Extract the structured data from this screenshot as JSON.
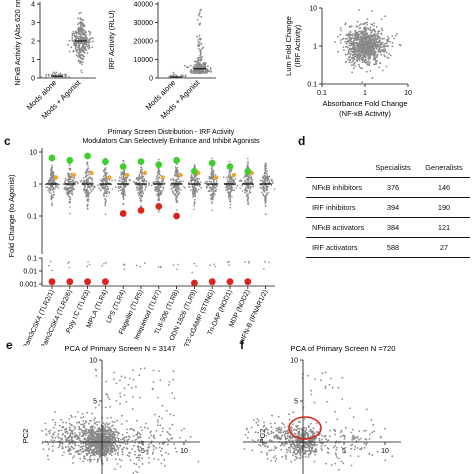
{
  "panels": {
    "c": "c",
    "d": "d",
    "e": "e",
    "f": "f"
  },
  "panel_a": {
    "ylabel": "NFκB Activity (Abs 620 nm)",
    "yticks": [
      "0",
      "1",
      "2",
      "3",
      "4"
    ],
    "categories": [
      "Mods alone",
      "Mods + Agonist"
    ]
  },
  "panel_b": {
    "ylabel": "IRF Activity (RLU)",
    "yticks": [
      "0",
      "10000",
      "20000",
      "30000",
      "40000"
    ],
    "categories": [
      "Mods alone",
      "Mods + Agonist"
    ]
  },
  "panel_scatter": {
    "xlabel": "Absorbance Fold Change",
    "xlabel2": "(NF-κB Activity)",
    "ylabel": "Lum Fold Change",
    "ylabel2": "(IRF Activity)",
    "xticks": [
      "0.1",
      "1",
      "10"
    ],
    "yticks": [
      "10",
      "1",
      "0.1"
    ]
  },
  "panel_c": {
    "title1": "Primary Screen Distribution - IRF Activity",
    "title2": "Modulators Can Selectively Enhance and Inhibit Agonists",
    "ylabel": "Fold Change (to Agonist)",
    "yticks_upper": [
      "10",
      "1",
      "0.1"
    ],
    "yticks_lower": [
      "0.1",
      "0.01",
      "0.001"
    ],
    "categories": [
      "Pam3CSK4 (TLR2/1)",
      "Pam2CSK4 (TLR2/6)",
      "Poly I:C (TLR3)",
      "MPLA (TLR4)",
      "LPS (TLR4)",
      "Flagellin (TLR5)",
      "Imiquimod (TLR7)",
      "TL8-506 (TLR8)",
      "ODN 1826 (TLR9)",
      "3'3'-cGAMP (STING)",
      "Tri-DAP (NOD1)",
      "MDP (NOD2)",
      "mIFN-B (IFNAR1/2)"
    ]
  },
  "panel_d": {
    "headers": [
      "",
      "Specialists",
      "Generalists"
    ],
    "rows": [
      {
        "label": "NFκB inhibitors",
        "specialists": "376",
        "generalists": "146"
      },
      {
        "label": "IRF inhibitors",
        "specialists": "394",
        "generalists": "190"
      },
      {
        "label": "NFκB activators",
        "specialists": "384",
        "generalists": "121"
      },
      {
        "label": "IRF activators",
        "specialists": "588",
        "generalists": "27"
      }
    ]
  },
  "panel_e": {
    "title": "PCA of Primary Screen N = 3147",
    "ylabel": "PC2",
    "yticks": [
      "10",
      "5"
    ],
    "xticks": [
      "5",
      "10"
    ]
  },
  "panel_f": {
    "title": "PCA of Primary Screen N =720",
    "ylabel": "PC2",
    "yticks": [
      "10",
      "5"
    ],
    "xticks": [
      "5",
      "10"
    ]
  },
  "colors": {
    "points": "#8a8a8a",
    "green": "#3ecf2e",
    "red": "#d8261d",
    "orange": "#f3a531",
    "black": "#111111"
  },
  "chart_data": [
    {
      "type": "scatter",
      "panel": "a",
      "categories": [
        "Mods alone",
        "Mods + Agonist"
      ],
      "ylim": [
        0,
        4
      ],
      "series": [
        {
          "category": "Mods alone",
          "median": 0.1,
          "spread": [
            0,
            0.6
          ]
        },
        {
          "category": "Mods + Agonist",
          "median": 2.0,
          "spread": [
            0.3,
            3.7
          ]
        }
      ]
    },
    {
      "type": "scatter",
      "panel": "b",
      "categories": [
        "Mods alone",
        "Mods + Agonist"
      ],
      "ylim": [
        0,
        40000
      ],
      "series": [
        {
          "category": "Mods alone",
          "median": 500,
          "spread": [
            0,
            3000
          ]
        },
        {
          "category": "Mods + Agonist",
          "median": 5000,
          "spread": [
            0,
            38000
          ]
        }
      ]
    },
    {
      "type": "scatter",
      "panel": "scatter",
      "xscale": "log",
      "yscale": "log",
      "xlim": [
        0.1,
        10
      ],
      "ylim": [
        0.1,
        10
      ],
      "cluster_center": [
        1.0,
        1.0
      ]
    },
    {
      "type": "scatter",
      "panel": "c",
      "yscale": "log",
      "categories": [
        "Pam3CSK4 (TLR2/1)",
        "Pam2CSK4 (TLR2/6)",
        "Poly I:C (TLR3)",
        "MPLA (TLR4)",
        "LPS (TLR4)",
        "Flagellin (TLR5)",
        "Imiquimod (TLR7)",
        "TL8-506 (TLR8)",
        "ODN 1826 (TLR9)",
        "3'3'-cGAMP (STING)",
        "Tri-DAP (NOD1)",
        "MDP (NOD2)",
        "mIFN-B (IFNAR1/2)"
      ],
      "green_points": [
        6.5,
        5.5,
        7.5,
        5.0,
        3.5,
        5.0,
        4.0,
        5.5,
        2.5,
        4.5,
        3.5,
        2.5,
        null
      ],
      "red_points": [
        0.0015,
        0.0015,
        0.0015,
        0.0015,
        0.12,
        0.15,
        0.2,
        0.1,
        0.0012,
        0.0015,
        0.0015,
        0.0015,
        null
      ],
      "medians": [
        1,
        1,
        1,
        1,
        1,
        1,
        1,
        1,
        1,
        1,
        1,
        1,
        1
      ]
    },
    {
      "type": "scatter",
      "panel": "e",
      "xlim": [
        -2,
        10
      ],
      "ylim": [
        -2,
        10
      ]
    },
    {
      "type": "scatter",
      "panel": "f",
      "xlim": [
        -2,
        10
      ],
      "ylim": [
        -2,
        10
      ],
      "highlight": "red-ellipse"
    }
  ]
}
